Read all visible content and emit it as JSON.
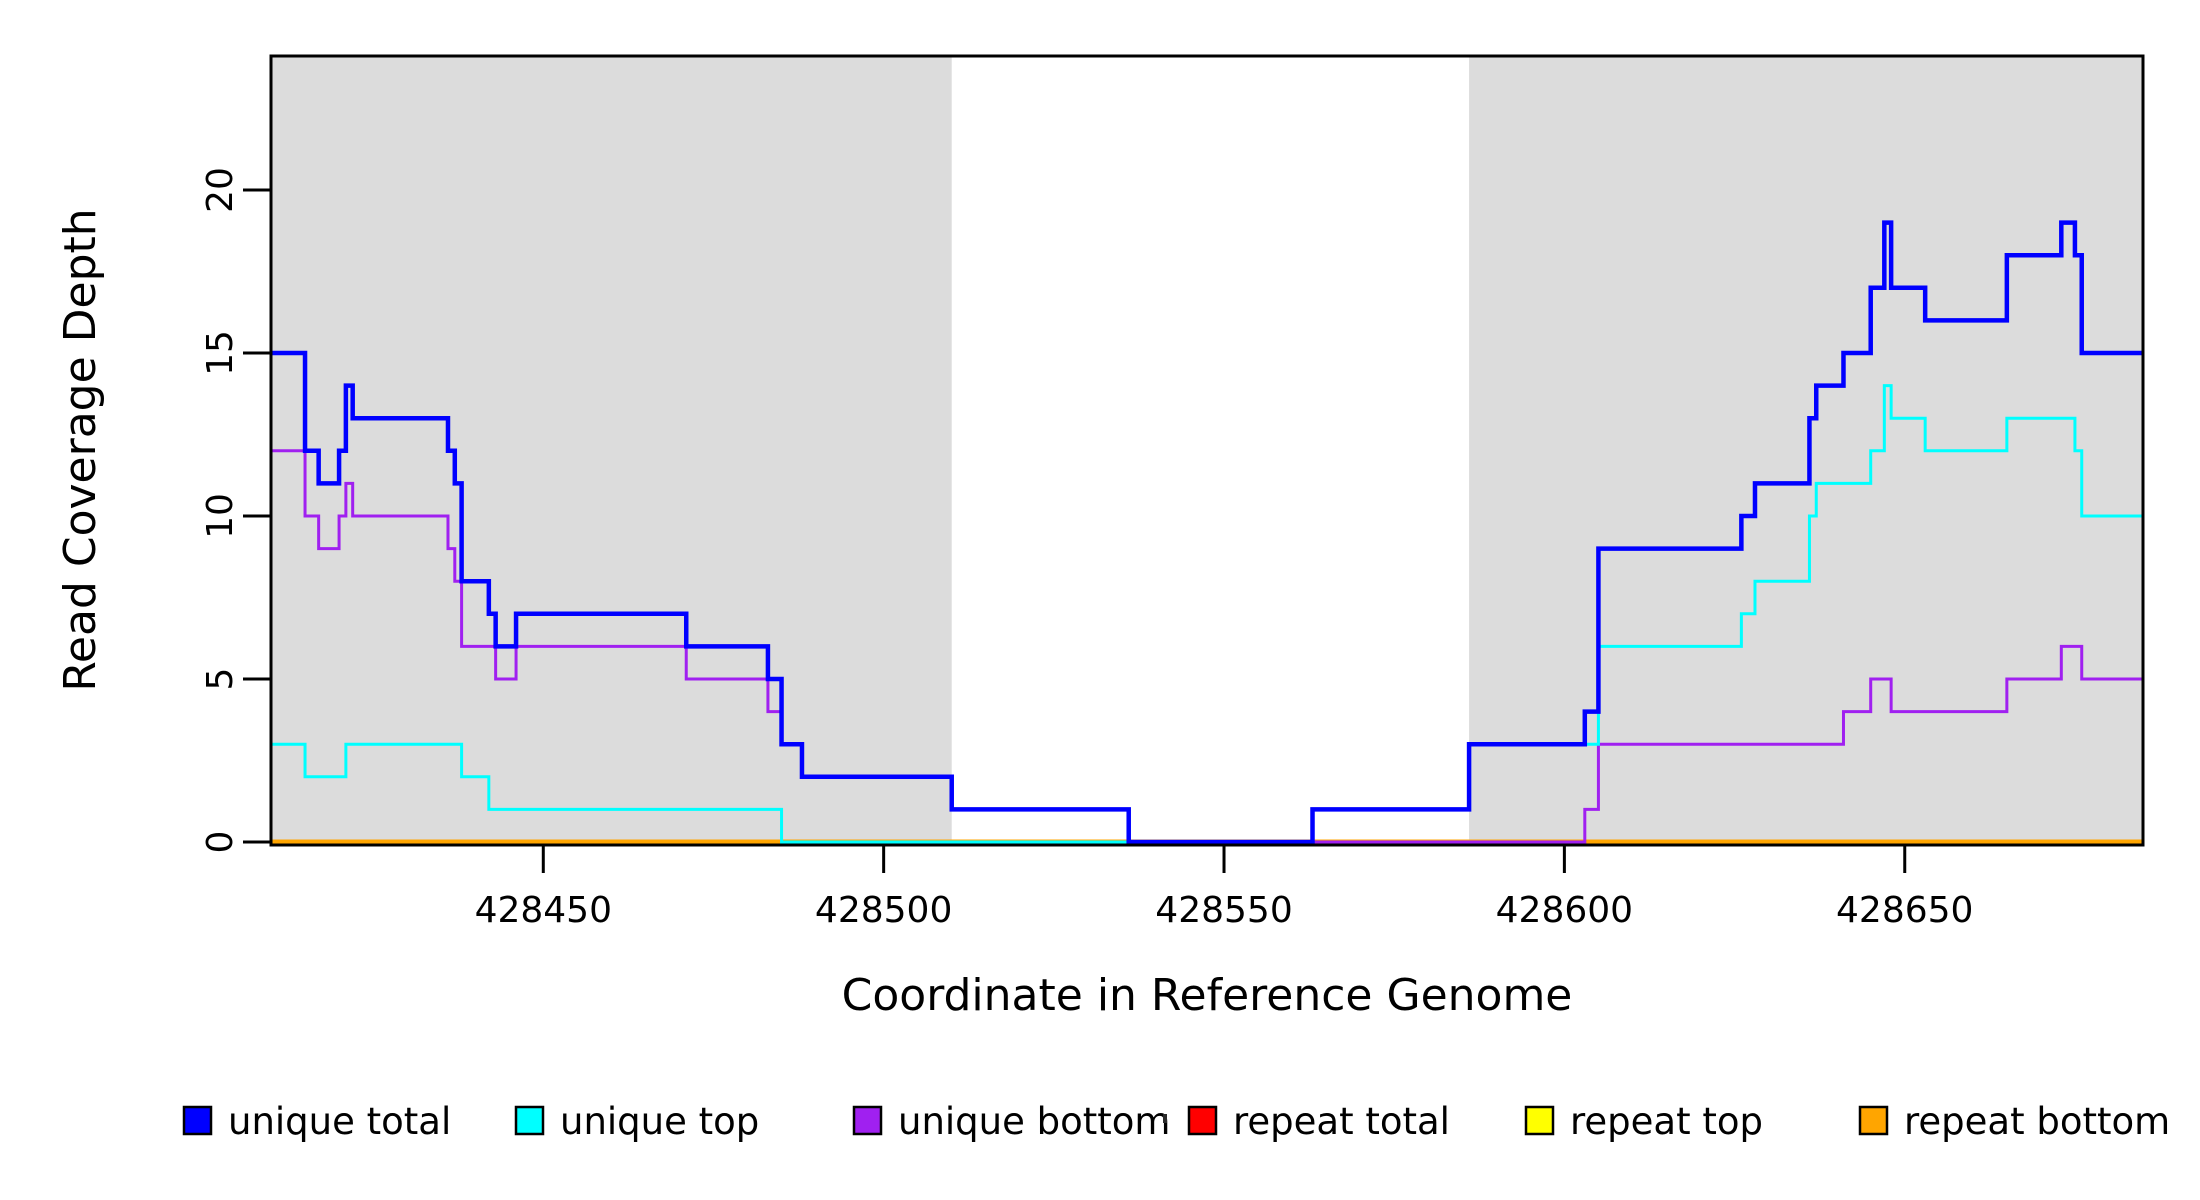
{
  "figure": {
    "background": "#ffffff",
    "plot_background": "#ffffff",
    "band_color": "#dcdcdc",
    "border_color": "#000000"
  },
  "chart_data": {
    "type": "line",
    "step_style": "post",
    "title": "",
    "xlabel": "Coordinate in Reference Genome",
    "ylabel": "Read Coverage Depth",
    "xlim": [
      428410,
      428685
    ],
    "ylim": [
      0,
      24.2
    ],
    "x_ticks": [
      428450,
      428500,
      428550,
      428600,
      428650
    ],
    "y_ticks": [
      0,
      5,
      10,
      15,
      20
    ],
    "grid": false,
    "legend_position": "bottom",
    "shaded_regions": [
      {
        "x0": 428410,
        "x1": 428510,
        "color": "#dcdcdc"
      },
      {
        "x0": 428586,
        "x1": 428685,
        "color": "#dcdcdc"
      }
    ],
    "series": [
      {
        "name": "repeat total",
        "color": "#ff0000",
        "line_width": 4.5,
        "points": [
          [
            428410,
            0
          ],
          [
            428685,
            0
          ]
        ]
      },
      {
        "name": "repeat top",
        "color": "#ffff00",
        "line_width": 4.5,
        "points": [
          [
            428410,
            0
          ],
          [
            428685,
            0
          ]
        ]
      },
      {
        "name": "repeat bottom",
        "color": "#ffa500",
        "line_width": 5,
        "points": [
          [
            428410,
            0
          ],
          [
            428685,
            0
          ]
        ]
      },
      {
        "name": "unique bottom",
        "color": "#a020f0",
        "line_width": 3,
        "points": [
          [
            428410,
            12
          ],
          [
            428415,
            10
          ],
          [
            428417,
            9
          ],
          [
            428420,
            10
          ],
          [
            428421,
            11
          ],
          [
            428422,
            10
          ],
          [
            428436,
            9
          ],
          [
            428437,
            8
          ],
          [
            428438,
            6
          ],
          [
            428443,
            5
          ],
          [
            428446,
            6
          ],
          [
            428471,
            5
          ],
          [
            428483,
            4
          ],
          [
            428485,
            3
          ],
          [
            428488,
            2
          ],
          [
            428510,
            1
          ],
          [
            428536,
            0
          ],
          [
            428603,
            1
          ],
          [
            428605,
            3
          ],
          [
            428641,
            4
          ],
          [
            428645,
            5
          ],
          [
            428648,
            4
          ],
          [
            428665,
            5
          ],
          [
            428673,
            6
          ],
          [
            428676,
            5
          ],
          [
            428685,
            5
          ]
        ]
      },
      {
        "name": "unique top",
        "color": "#00ffff",
        "line_width": 3,
        "points": [
          [
            428410,
            3
          ],
          [
            428415,
            2
          ],
          [
            428421,
            3
          ],
          [
            428438,
            2
          ],
          [
            428442,
            1
          ],
          [
            428485,
            0
          ],
          [
            428563,
            1
          ],
          [
            428586,
            3
          ],
          [
            428605,
            6
          ],
          [
            428626,
            7
          ],
          [
            428628,
            8
          ],
          [
            428636,
            10
          ],
          [
            428637,
            11
          ],
          [
            428645,
            12
          ],
          [
            428647,
            14
          ],
          [
            428648,
            13
          ],
          [
            428653,
            12
          ],
          [
            428665,
            13
          ],
          [
            428675,
            12
          ],
          [
            428676,
            10
          ],
          [
            428685,
            10
          ]
        ]
      },
      {
        "name": "unique total",
        "color": "#0000ff",
        "line_width": 4.5,
        "points": [
          [
            428410,
            15
          ],
          [
            428415,
            12
          ],
          [
            428417,
            11
          ],
          [
            428420,
            12
          ],
          [
            428421,
            14
          ],
          [
            428422,
            13
          ],
          [
            428436,
            12
          ],
          [
            428437,
            11
          ],
          [
            428438,
            8
          ],
          [
            428442,
            7
          ],
          [
            428443,
            6
          ],
          [
            428446,
            7
          ],
          [
            428471,
            6
          ],
          [
            428483,
            5
          ],
          [
            428485,
            3
          ],
          [
            428488,
            2
          ],
          [
            428510,
            1
          ],
          [
            428536,
            0
          ],
          [
            428563,
            1
          ],
          [
            428586,
            3
          ],
          [
            428603,
            4
          ],
          [
            428605,
            9
          ],
          [
            428626,
            10
          ],
          [
            428628,
            11
          ],
          [
            428636,
            13
          ],
          [
            428637,
            14
          ],
          [
            428641,
            15
          ],
          [
            428645,
            17
          ],
          [
            428647,
            19
          ],
          [
            428648,
            17
          ],
          [
            428653,
            16
          ],
          [
            428665,
            18
          ],
          [
            428673,
            19
          ],
          [
            428675,
            18
          ],
          [
            428676,
            15
          ],
          [
            428685,
            15
          ]
        ]
      }
    ]
  },
  "legend": {
    "items": [
      {
        "label": "unique total",
        "color": "#0000ff"
      },
      {
        "label": "unique top",
        "color": "#00ffff"
      },
      {
        "label": "unique bottom",
        "color": "#a020f0"
      },
      {
        "label": "repeat total",
        "color": "#ff0000"
      },
      {
        "label": "repeat top",
        "color": "#ffff00"
      },
      {
        "label": "repeat bottom",
        "color": "#ffa500"
      }
    ],
    "swatch_border_color": "#000000",
    "stray_mark": "'"
  }
}
